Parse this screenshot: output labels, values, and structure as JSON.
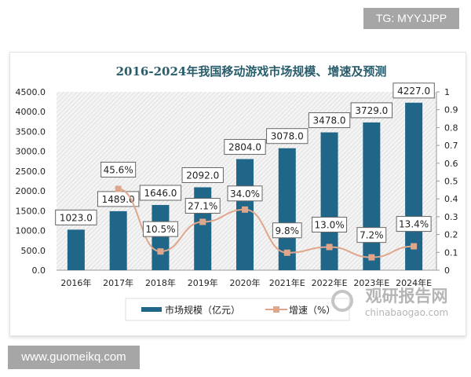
{
  "watermark_top": "TG: MYYJJPP",
  "watermark_bottom": "www.guomeikq.com",
  "logo": {
    "name": "观研报告网",
    "url": "chinabaogao.com"
  },
  "chart_data": {
    "type": "bar+line",
    "title": "2016-2024年我国移动游戏市场规模、增速及预测",
    "categories": [
      "2016年",
      "2017年",
      "2018年",
      "2019年",
      "2020年",
      "2021年E",
      "2022年E",
      "2023年E",
      "2024年E"
    ],
    "series": [
      {
        "name": "市场规模（亿元）",
        "type": "bar",
        "axis": "left",
        "color": "#1f6689",
        "values": [
          1023.0,
          1489.0,
          1646.0,
          2092.0,
          2804.0,
          3078.0,
          3478.0,
          3729.0,
          4227.0
        ],
        "labels": [
          "1023.0",
          "1489.0",
          "1646.0",
          "2092.0",
          "2804.0",
          "3078.0",
          "3478.0",
          "3729.0",
          "4227.0"
        ]
      },
      {
        "name": "增速（%）",
        "type": "line",
        "axis": "right",
        "color": "#e0a68c",
        "values": [
          null,
          0.456,
          0.105,
          0.271,
          0.34,
          0.098,
          0.13,
          0.072,
          0.134
        ],
        "labels": [
          "",
          "45.6%",
          "10.5%",
          "27.1%",
          "34.0%",
          "9.8%",
          "13.0%",
          "7.2%",
          "13.4%"
        ]
      }
    ],
    "y_left": {
      "range": [
        0,
        4500
      ],
      "ticks": [
        "0.0",
        "500.0",
        "1000.0",
        "1500.0",
        "2000.0",
        "2500.0",
        "3000.0",
        "3500.0",
        "4000.0",
        "4500.0"
      ]
    },
    "y_right": {
      "range": [
        0,
        1
      ],
      "ticks": [
        "0",
        "0.1",
        "0.2",
        "0.3",
        "0.4",
        "0.5",
        "0.6",
        "0.7",
        "0.8",
        "0.9",
        "1"
      ]
    },
    "grid": false,
    "legend": "bottom"
  }
}
